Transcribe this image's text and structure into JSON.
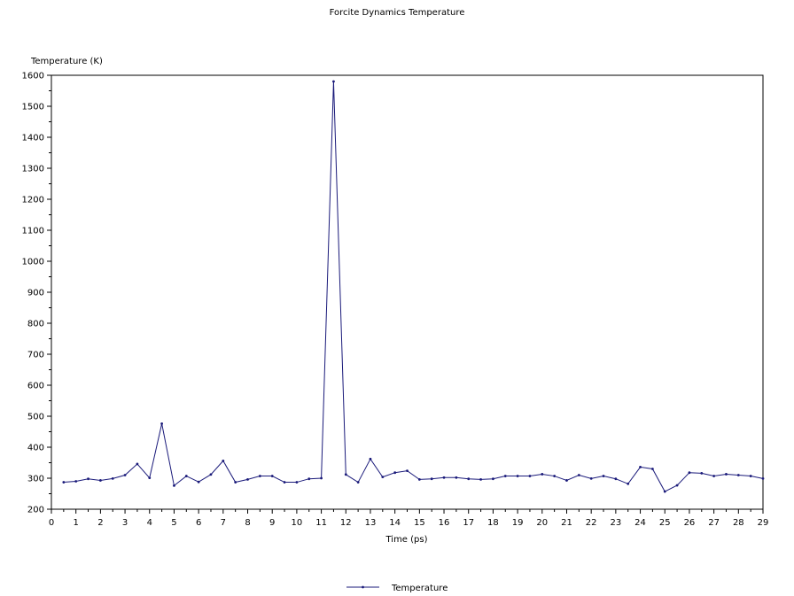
{
  "chart_data": {
    "type": "line",
    "title": "Forcite Dynamics Temperature",
    "ylabel": "Temperature (K)",
    "xlabel": "Time (ps)",
    "xlim": [
      0,
      29
    ],
    "ylim": [
      200,
      1600
    ],
    "x_ticks": [
      0,
      1,
      2,
      3,
      4,
      5,
      6,
      7,
      8,
      9,
      10,
      11,
      12,
      13,
      14,
      15,
      16,
      17,
      18,
      19,
      20,
      21,
      22,
      23,
      24,
      25,
      26,
      27,
      28,
      29
    ],
    "y_ticks": [
      200,
      300,
      400,
      500,
      600,
      700,
      800,
      900,
      1000,
      1100,
      1200,
      1300,
      1400,
      1500,
      1600
    ],
    "legend_position": "bottom",
    "series": [
      {
        "name": "Temperature",
        "color": "#1a1a7a",
        "points": [
          [
            0.5,
            287
          ],
          [
            1.0,
            290
          ],
          [
            1.5,
            298
          ],
          [
            2.0,
            293
          ],
          [
            2.5,
            299
          ],
          [
            3.0,
            310
          ],
          [
            3.5,
            346
          ],
          [
            4.0,
            301
          ],
          [
            4.5,
            476
          ],
          [
            5.0,
            276
          ],
          [
            5.5,
            307
          ],
          [
            6.0,
            288
          ],
          [
            6.5,
            312
          ],
          [
            7.0,
            356
          ],
          [
            7.5,
            287
          ],
          [
            8.0,
            296
          ],
          [
            8.5,
            307
          ],
          [
            9.0,
            307
          ],
          [
            9.5,
            287
          ],
          [
            10.0,
            287
          ],
          [
            10.5,
            298
          ],
          [
            11.0,
            300
          ],
          [
            11.5,
            1580
          ],
          [
            12.0,
            312
          ],
          [
            12.5,
            287
          ],
          [
            13.0,
            362
          ],
          [
            13.5,
            304
          ],
          [
            14.0,
            318
          ],
          [
            14.5,
            324
          ],
          [
            15.0,
            296
          ],
          [
            15.5,
            298
          ],
          [
            16.0,
            302
          ],
          [
            16.5,
            302
          ],
          [
            17.0,
            298
          ],
          [
            17.5,
            296
          ],
          [
            18.0,
            298
          ],
          [
            18.5,
            307
          ],
          [
            19.0,
            307
          ],
          [
            19.5,
            307
          ],
          [
            20.0,
            313
          ],
          [
            20.5,
            307
          ],
          [
            21.0,
            293
          ],
          [
            21.5,
            310
          ],
          [
            22.0,
            299
          ],
          [
            22.5,
            307
          ],
          [
            23.0,
            298
          ],
          [
            23.5,
            282
          ],
          [
            24.0,
            336
          ],
          [
            24.5,
            330
          ],
          [
            25.0,
            257
          ],
          [
            25.5,
            277
          ],
          [
            26.0,
            318
          ],
          [
            26.5,
            316
          ],
          [
            27.0,
            307
          ],
          [
            27.5,
            313
          ],
          [
            28.0,
            310
          ],
          [
            28.5,
            307
          ],
          [
            29.0,
            299
          ]
        ]
      }
    ]
  }
}
